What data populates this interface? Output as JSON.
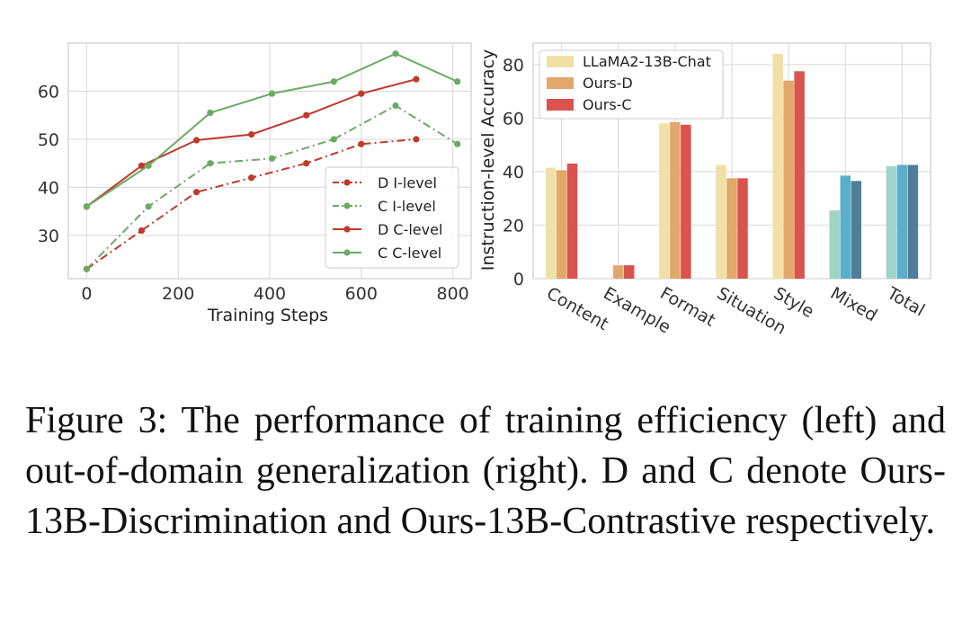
{
  "chart_data": [
    {
      "type": "line",
      "xlabel": "Training Steps",
      "ylabel": "",
      "xlim": [
        -40,
        840
      ],
      "ylim": [
        21,
        70
      ],
      "xticks": [
        0,
        200,
        400,
        600,
        800
      ],
      "yticks": [
        30,
        40,
        50,
        60
      ],
      "grid": true,
      "legend_position": "lower-right",
      "series": [
        {
          "name": "D I-level",
          "color": "#c0392b",
          "style": "dashdot",
          "x": [
            0,
            120,
            240,
            360,
            480,
            600,
            720
          ],
          "y": [
            23,
            31,
            39,
            42,
            45,
            49,
            50
          ]
        },
        {
          "name": "C I-level",
          "color": "#6aaa64",
          "style": "dashdot",
          "x": [
            0,
            135,
            270,
            405,
            540,
            675,
            810
          ],
          "y": [
            23,
            36,
            45,
            46,
            50,
            57,
            49
          ]
        },
        {
          "name": "D C-level",
          "color": "#c0392b",
          "style": "solid",
          "x": [
            0,
            120,
            240,
            360,
            480,
            600,
            720
          ],
          "y": [
            36,
            44.5,
            49.8,
            51,
            55,
            59.5,
            62.5
          ]
        },
        {
          "name": "C C-level",
          "color": "#6aaa64",
          "style": "solid",
          "x": [
            0,
            135,
            270,
            405,
            540,
            675,
            810
          ],
          "y": [
            36,
            44.5,
            55.5,
            59.5,
            62,
            67.8,
            62
          ]
        }
      ]
    },
    {
      "type": "bar",
      "ylabel": "Instruction-level Accuracy",
      "ylim": [
        0,
        88
      ],
      "yticks": [
        0,
        20,
        40,
        60,
        80
      ],
      "grid": true,
      "legend_position": "top-left",
      "categories": [
        "Content",
        "Example",
        "Format",
        "Situation",
        "Style",
        "Mixed",
        "Total"
      ],
      "series": [
        {
          "name": "LLaMA2-13B-Chat",
          "color": "#f0e0a6",
          "values": [
            41.5,
            0,
            58,
            42.5,
            84,
            25.5,
            42
          ]
        },
        {
          "name": "Ours-D",
          "color": "#e2a76a",
          "values": [
            40.5,
            5,
            58.5,
            37.5,
            74,
            38.5,
            42.5
          ]
        },
        {
          "name": "Ours-C",
          "color": "#d9534f",
          "values": [
            43,
            5,
            57.5,
            37.5,
            77.5,
            36.5,
            42.5
          ]
        }
      ],
      "alt_colors": [
        "#9fd5c6",
        "#5aaecc",
        "#4f7f98"
      ]
    }
  ],
  "caption": "Figure 3:  The performance of training efficiency (left) and out-of-domain generalization (right).  D and C denote Ours-13B-Discrimination and Ours-13B-Contrastive respectively."
}
